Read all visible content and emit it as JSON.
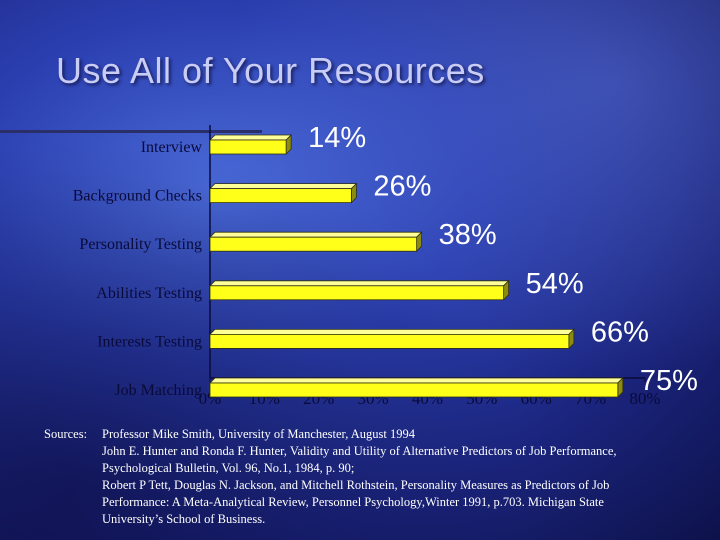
{
  "slide": {
    "title": "Use All of Your Resources",
    "sources_label": "Sources:",
    "sources_lines": [
      "Professor Mike Smith, University of Manchester, August 1994",
      "John E. Hunter and Ronda F. Hunter, Validity and Utility of Alternative Predictors of Job Performance,",
      "Psychological Bulletin, Vol. 96, No.1, 1984, p. 90;",
      "Robert P Tett, Douglas N. Jackson, and Mitchell Rothstein, Personality Measures as Predictors of Job",
      "Performance: A Meta-Analytical Review, Personnel Psychology,Winter 1991, p.703. Michigan State",
      "University’s School of Business."
    ]
  },
  "colors": {
    "bar_fill": "#ffff1a",
    "bar_top": "#ffff99",
    "bar_shadow": "#8c8c10",
    "label_color": "#ffffff",
    "category_label_color": "#0a0a3a",
    "axis_color": "#0a0a3a"
  },
  "chart_data": {
    "type": "bar",
    "orientation": "horizontal",
    "categories": [
      "Interview",
      "Background Checks",
      "Personality Testing",
      "Abilities Testing",
      "Interests Testing",
      "Job Matching"
    ],
    "values": [
      14,
      26,
      38,
      54,
      66,
      75
    ],
    "data_labels": [
      "14%",
      "26%",
      "38%",
      "54%",
      "66%",
      "75%"
    ],
    "x_ticks": [
      "0%",
      "10%",
      "20%",
      "30%",
      "40%",
      "50%",
      "60%",
      "70%",
      "80%"
    ],
    "xlim": [
      0,
      80
    ],
    "title": "",
    "xlabel": "",
    "ylabel": "",
    "grid": false,
    "legend": "none"
  }
}
